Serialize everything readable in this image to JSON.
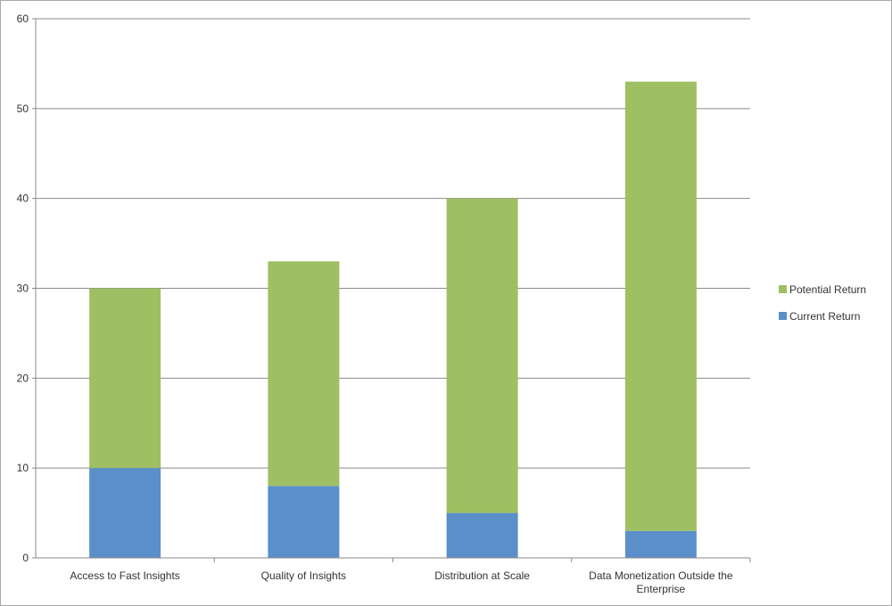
{
  "chart_data": {
    "type": "bar",
    "stacked": true,
    "categories": [
      "Access to Fast Insights",
      "Quality of Insights",
      "Distribution at Scale",
      "Data Monetization Outside the Enterprise"
    ],
    "category_lines": [
      [
        "Access to Fast Insights"
      ],
      [
        "Quality of Insights"
      ],
      [
        "Distribution at Scale"
      ],
      [
        "Data Monetization Outside the",
        "Enterprise"
      ]
    ],
    "series": [
      {
        "name": "Current Return",
        "color": "#5b8fc9",
        "values": [
          10,
          8,
          5,
          3
        ]
      },
      {
        "name": "Potential Return",
        "color": "#9fbf63",
        "values": [
          20,
          25,
          35,
          50
        ]
      }
    ],
    "ylim": [
      0,
      60
    ],
    "yticks": [
      0,
      10,
      20,
      30,
      40,
      50,
      60
    ],
    "grid": true,
    "legend_position": "right",
    "legend_order": [
      "Potential Return",
      "Current Return"
    ],
    "title": "",
    "xlabel": "",
    "ylabel": ""
  }
}
